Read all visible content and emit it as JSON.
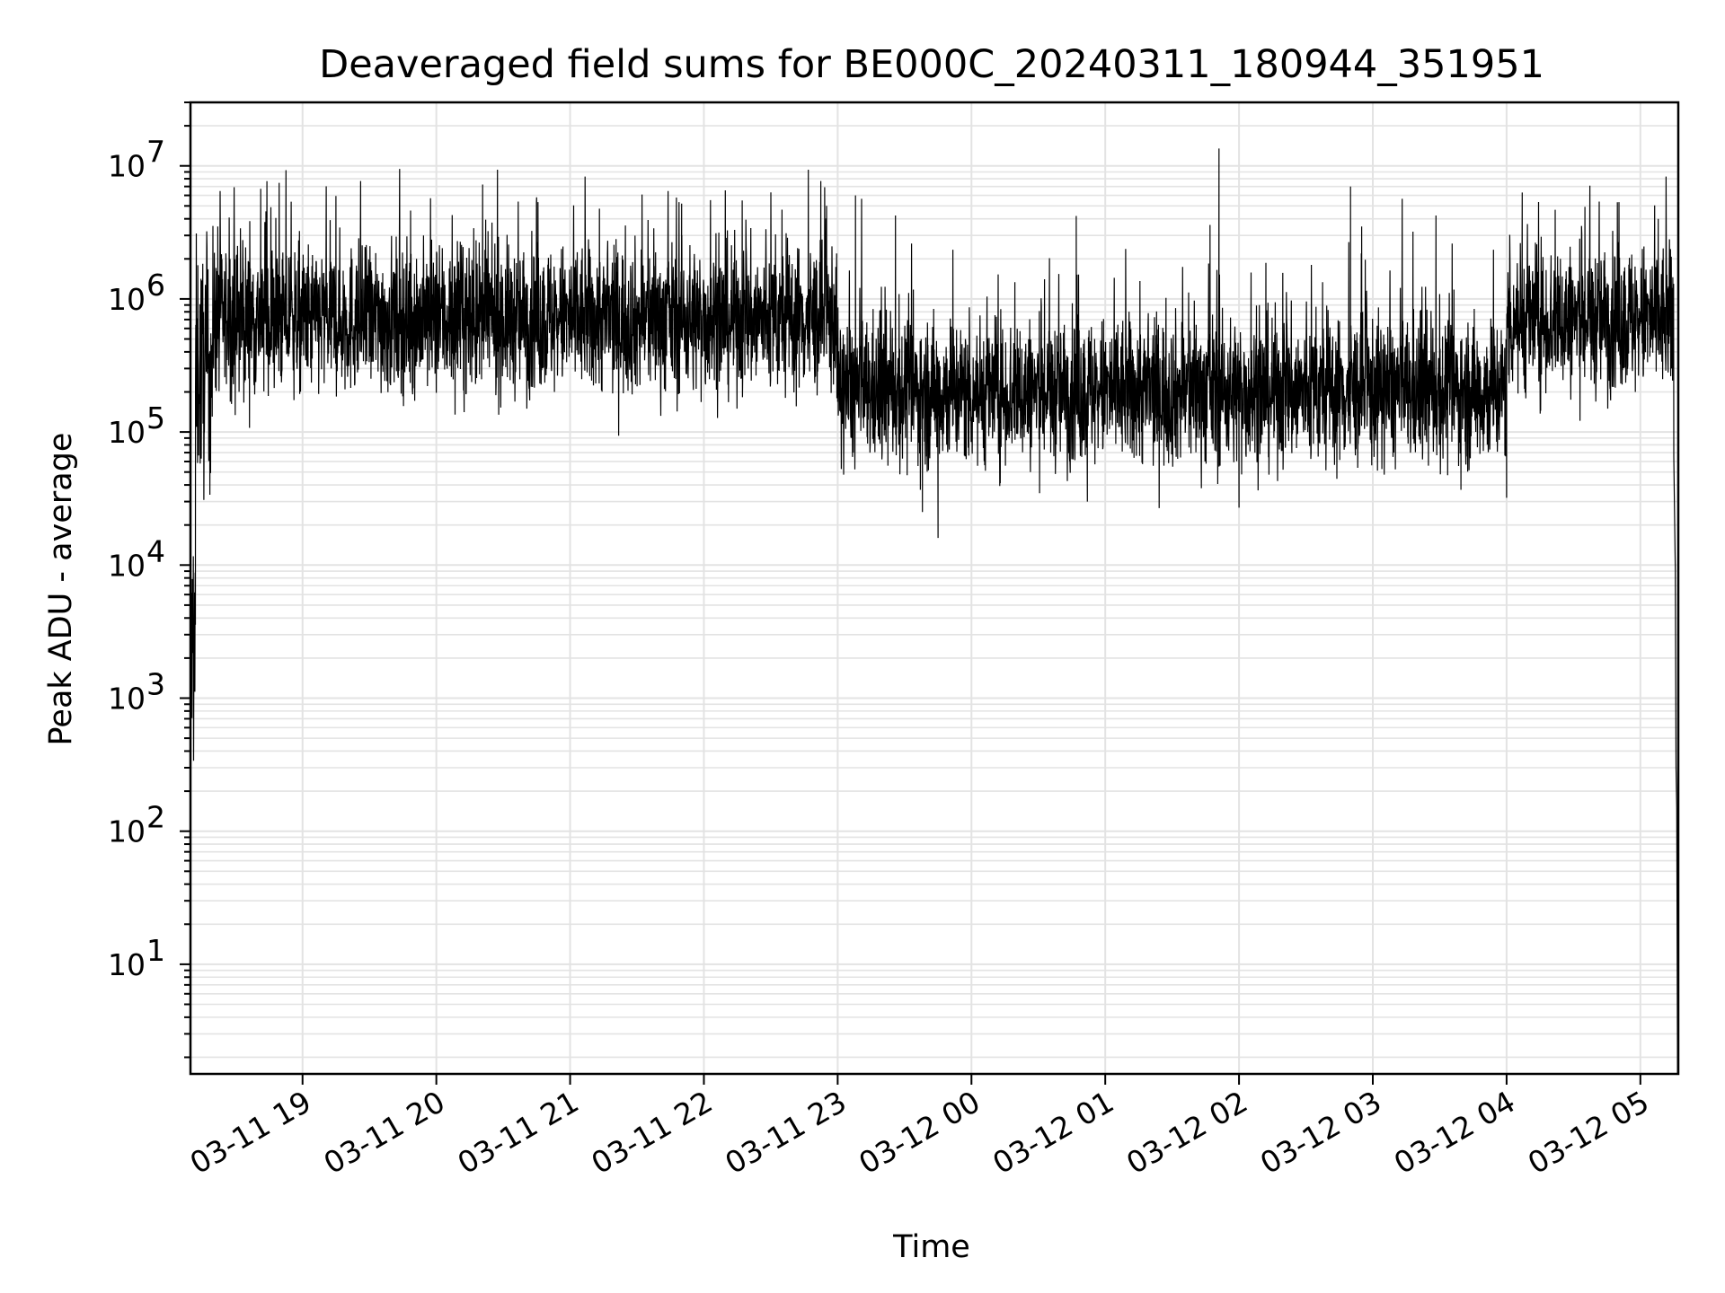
{
  "chart_data": {
    "type": "line",
    "title": "Deaveraged field sums for BE000C_20240311_180944_351951",
    "xlabel": "Time",
    "ylabel": "Peak ADU - average",
    "yscale": "log",
    "ylim": [
      1.5,
      30000000
    ],
    "xlim": [
      "2024-03-11 18:09:44",
      "2024-03-12 05:17:00"
    ],
    "x_ticks": [
      {
        "label": "03-11 19",
        "time": "2024-03-11 19:00"
      },
      {
        "label": "03-11 20",
        "time": "2024-03-11 20:00"
      },
      {
        "label": "03-11 21",
        "time": "2024-03-11 21:00"
      },
      {
        "label": "03-11 22",
        "time": "2024-03-11 22:00"
      },
      {
        "label": "03-11 23",
        "time": "2024-03-11 23:00"
      },
      {
        "label": "03-12 00",
        "time": "2024-03-12 00:00"
      },
      {
        "label": "03-12 01",
        "time": "2024-03-12 01:00"
      },
      {
        "label": "03-12 02",
        "time": "2024-03-12 02:00"
      },
      {
        "label": "03-12 03",
        "time": "2024-03-12 03:00"
      },
      {
        "label": "03-12 04",
        "time": "2024-03-12 04:00"
      },
      {
        "label": "03-12 05",
        "time": "2024-03-12 05:00"
      }
    ],
    "y_ticks": [
      {
        "base": "10",
        "exp": "1",
        "value": 10
      },
      {
        "base": "10",
        "exp": "2",
        "value": 100
      },
      {
        "base": "10",
        "exp": "3",
        "value": 1000
      },
      {
        "base": "10",
        "exp": "4",
        "value": 10000
      },
      {
        "base": "10",
        "exp": "5",
        "value": 100000
      },
      {
        "base": "10",
        "exp": "6",
        "value": 1000000
      },
      {
        "base": "10",
        "exp": "7",
        "value": 10000000
      }
    ],
    "grid": true,
    "line_color": "#000000",
    "grid_color": "#e3e3e3",
    "series": [
      {
        "segments": [
          {
            "start": "2024-03-11 18:09:44",
            "end": "2024-03-11 18:12",
            "median": 2000,
            "spread": 0.5
          },
          {
            "start": "2024-03-11 18:12",
            "end": "2024-03-11 18:20",
            "median": 300000,
            "spread": 0.45
          },
          {
            "start": "2024-03-11 18:20",
            "end": "2024-03-11 23:00",
            "median": 700000,
            "spread": 0.28
          },
          {
            "start": "2024-03-11 23:00",
            "end": "2024-03-12 04:00",
            "median": 200000,
            "spread": 0.28
          },
          {
            "start": "2024-03-12 04:00",
            "end": "2024-03-12 05:15",
            "median": 700000,
            "spread": 0.28
          }
        ],
        "peaks": [
          {
            "time": "2024-03-11 18:22",
            "value": 3500000
          },
          {
            "time": "2024-03-11 20:45",
            "value": 5800000
          },
          {
            "time": "2024-03-11 21:50",
            "value": 5200000
          },
          {
            "time": "2024-03-11 22:55",
            "value": 5000000
          },
          {
            "time": "2024-03-11 23:08",
            "value": 6000000
          },
          {
            "time": "2024-03-12 00:47",
            "value": 4200000
          },
          {
            "time": "2024-03-12 01:47",
            "value": 3600000
          },
          {
            "time": "2024-03-12 01:51",
            "value": 13500000
          },
          {
            "time": "2024-03-12 02:50",
            "value": 7000000
          },
          {
            "time": "2024-03-12 02:55",
            "value": 3500000
          },
          {
            "time": "2024-03-12 03:18",
            "value": 3200000
          },
          {
            "time": "2024-03-12 04:07",
            "value": 6300000
          },
          {
            "time": "2024-03-12 05:08",
            "value": 4000000
          }
        ],
        "dips": [
          {
            "time": "2024-03-11 23:45",
            "value": 16000
          },
          {
            "time": "2024-03-11 23:38",
            "value": 25000
          },
          {
            "time": "2024-03-12 00:52",
            "value": 30000
          },
          {
            "time": "2024-03-12 02:00",
            "value": 27000
          },
          {
            "time": "2024-03-12 04:00",
            "value": 32000
          }
        ],
        "tail": [
          {
            "time": "2024-03-12 05:14",
            "value": 300000
          },
          {
            "time": "2024-03-12 05:15",
            "value": 65000
          },
          {
            "time": "2024-03-12 05:15:40",
            "value": 9000
          },
          {
            "time": "2024-03-12 05:16",
            "value": 300
          },
          {
            "time": "2024-03-12 05:16:20",
            "value": 150
          },
          {
            "time": "2024-03-12 05:16:40",
            "value": 1.5
          }
        ]
      }
    ]
  }
}
